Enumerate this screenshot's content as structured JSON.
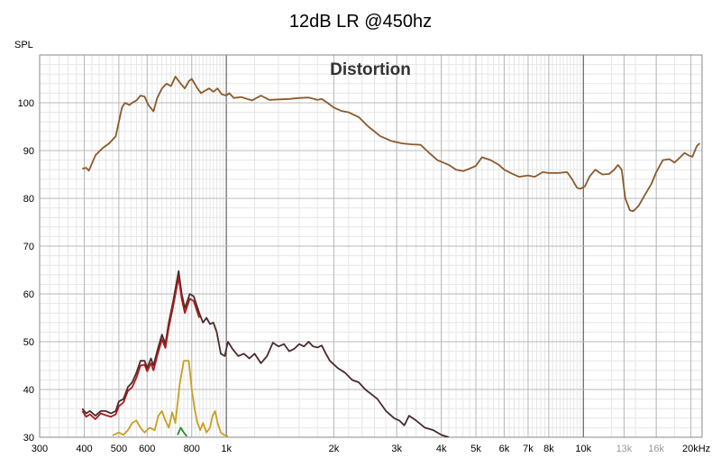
{
  "chart_data": {
    "type": "line",
    "title": "12dB LR @450hz",
    "inner_title": "Distortion",
    "ylabel": "SPL",
    "xlabel": "",
    "x_scale": "log",
    "xlim": [
      300,
      21500
    ],
    "ylim": [
      30,
      110
    ],
    "grid": true,
    "legend": "none",
    "x_ticks": [
      {
        "value": 300,
        "label": "300",
        "grey": false
      },
      {
        "value": 400,
        "label": "400",
        "grey": false
      },
      {
        "value": 500,
        "label": "500",
        "grey": false
      },
      {
        "value": 600,
        "label": "600",
        "grey": false
      },
      {
        "value": 800,
        "label": "800",
        "grey": false
      },
      {
        "value": 1000,
        "label": "1k",
        "grey": false
      },
      {
        "value": 2000,
        "label": "2k",
        "grey": false
      },
      {
        "value": 3000,
        "label": "3k",
        "grey": false
      },
      {
        "value": 4000,
        "label": "4k",
        "grey": false
      },
      {
        "value": 5000,
        "label": "5k",
        "grey": false
      },
      {
        "value": 6000,
        "label": "6k",
        "grey": false
      },
      {
        "value": 7000,
        "label": "7k",
        "grey": false
      },
      {
        "value": 8000,
        "label": "8k",
        "grey": false
      },
      {
        "value": 10000,
        "label": "10k",
        "grey": false
      },
      {
        "value": 13000,
        "label": "13k",
        "grey": true
      },
      {
        "value": 16000,
        "label": "16k",
        "grey": true
      },
      {
        "value": 20000,
        "label": "20kHz",
        "grey": false
      }
    ],
    "y_ticks": [
      {
        "value": 30,
        "label": "30"
      },
      {
        "value": 40,
        "label": "40"
      },
      {
        "value": 50,
        "label": "50"
      },
      {
        "value": 60,
        "label": "60"
      },
      {
        "value": 70,
        "label": "70"
      },
      {
        "value": 80,
        "label": "80"
      },
      {
        "value": 90,
        "label": "90"
      },
      {
        "value": 100,
        "label": "100"
      }
    ],
    "series": [
      {
        "color": "#8b5a2b",
        "points": [
          [
            395,
            86.2
          ],
          [
            405,
            86.4
          ],
          [
            412,
            85.8
          ],
          [
            430,
            89
          ],
          [
            450,
            90.5
          ],
          [
            470,
            91.5
          ],
          [
            490,
            93
          ],
          [
            500,
            96
          ],
          [
            510,
            99
          ],
          [
            520,
            100
          ],
          [
            535,
            99.5
          ],
          [
            545,
            100
          ],
          [
            560,
            100.5
          ],
          [
            575,
            101.5
          ],
          [
            590,
            101.3
          ],
          [
            605,
            99.5
          ],
          [
            625,
            98.2
          ],
          [
            640,
            101
          ],
          [
            660,
            103
          ],
          [
            680,
            104
          ],
          [
            700,
            103.5
          ],
          [
            720,
            105.5
          ],
          [
            745,
            104
          ],
          [
            765,
            103
          ],
          [
            785,
            104.5
          ],
          [
            800,
            105
          ],
          [
            830,
            103
          ],
          [
            850,
            102
          ],
          [
            870,
            102.5
          ],
          [
            895,
            103
          ],
          [
            920,
            102.3
          ],
          [
            945,
            103
          ],
          [
            970,
            101.8
          ],
          [
            1000,
            101.5
          ],
          [
            1020,
            102
          ],
          [
            1050,
            101
          ],
          [
            1100,
            101.2
          ],
          [
            1180,
            100.5
          ],
          [
            1250,
            101.5
          ],
          [
            1320,
            100.6
          ],
          [
            1400,
            100.7
          ],
          [
            1500,
            100.8
          ],
          [
            1600,
            101
          ],
          [
            1700,
            101.1
          ],
          [
            1800,
            100.6
          ],
          [
            1850,
            100.8
          ],
          [
            1900,
            100.2
          ],
          [
            2000,
            99
          ],
          [
            2100,
            98.3
          ],
          [
            2200,
            98
          ],
          [
            2350,
            97
          ],
          [
            2500,
            95
          ],
          [
            2700,
            93
          ],
          [
            2900,
            92
          ],
          [
            3100,
            91.5
          ],
          [
            3300,
            91.3
          ],
          [
            3500,
            91.2
          ],
          [
            3700,
            89.5
          ],
          [
            3900,
            88
          ],
          [
            4200,
            87
          ],
          [
            4400,
            86
          ],
          [
            4600,
            85.7
          ],
          [
            4800,
            86.2
          ],
          [
            5000,
            86.8
          ],
          [
            5200,
            88.6
          ],
          [
            5500,
            88
          ],
          [
            5800,
            87
          ],
          [
            6000,
            86
          ],
          [
            6300,
            85.2
          ],
          [
            6600,
            84.5
          ],
          [
            7000,
            84.8
          ],
          [
            7300,
            84.5
          ],
          [
            7700,
            85.5
          ],
          [
            8000,
            85.3
          ],
          [
            8500,
            85.3
          ],
          [
            9000,
            85.5
          ],
          [
            9300,
            84
          ],
          [
            9600,
            82.2
          ],
          [
            9800,
            82
          ],
          [
            10100,
            82.5
          ],
          [
            10400,
            84.5
          ],
          [
            10800,
            86
          ],
          [
            11300,
            85
          ],
          [
            11800,
            85.1
          ],
          [
            12200,
            86
          ],
          [
            12500,
            87
          ],
          [
            12800,
            86
          ],
          [
            13100,
            80
          ],
          [
            13500,
            77.5
          ],
          [
            13800,
            77.3
          ],
          [
            14300,
            78.5
          ],
          [
            14800,
            80.5
          ],
          [
            15500,
            83
          ],
          [
            16000,
            85.5
          ],
          [
            16700,
            88
          ],
          [
            17400,
            88.2
          ],
          [
            18000,
            87.5
          ],
          [
            18600,
            88.5
          ],
          [
            19200,
            89.5
          ],
          [
            19700,
            89
          ],
          [
            20200,
            88.7
          ],
          [
            20800,
            91
          ],
          [
            21200,
            91.5
          ]
        ]
      },
      {
        "color": "#4a2c2c",
        "points": [
          [
            395,
            36
          ],
          [
            405,
            35
          ],
          [
            415,
            35.5
          ],
          [
            430,
            34.5
          ],
          [
            445,
            35.5
          ],
          [
            460,
            35.5
          ],
          [
            475,
            35
          ],
          [
            490,
            35.5
          ],
          [
            500,
            37.5
          ],
          [
            515,
            38
          ],
          [
            530,
            40.5
          ],
          [
            545,
            41.5
          ],
          [
            560,
            43.5
          ],
          [
            575,
            46
          ],
          [
            590,
            46
          ],
          [
            600,
            44.5
          ],
          [
            615,
            46.5
          ],
          [
            625,
            45
          ],
          [
            640,
            48
          ],
          [
            660,
            51.5
          ],
          [
            675,
            49.5
          ],
          [
            690,
            54
          ],
          [
            710,
            58.5
          ],
          [
            735,
            64.8
          ],
          [
            750,
            60
          ],
          [
            765,
            57
          ],
          [
            790,
            60
          ],
          [
            810,
            59.5
          ],
          [
            840,
            56
          ],
          [
            860,
            54
          ],
          [
            880,
            55
          ],
          [
            900,
            53.7
          ],
          [
            920,
            54
          ],
          [
            940,
            52
          ],
          [
            965,
            47.5
          ],
          [
            990,
            47
          ],
          [
            1010,
            50
          ],
          [
            1040,
            48.5
          ],
          [
            1080,
            47
          ],
          [
            1120,
            47.5
          ],
          [
            1160,
            46.5
          ],
          [
            1200,
            47.5
          ],
          [
            1250,
            45.5
          ],
          [
            1300,
            47
          ],
          [
            1350,
            49.8
          ],
          [
            1400,
            49
          ],
          [
            1450,
            49.5
          ],
          [
            1500,
            48
          ],
          [
            1550,
            48.5
          ],
          [
            1600,
            49.5
          ],
          [
            1650,
            49
          ],
          [
            1700,
            50
          ],
          [
            1750,
            49
          ],
          [
            1800,
            48.8
          ],
          [
            1850,
            49.2
          ],
          [
            1900,
            47.5
          ],
          [
            1950,
            46
          ],
          [
            2050,
            44.5
          ],
          [
            2150,
            43.5
          ],
          [
            2250,
            42
          ],
          [
            2350,
            41.5
          ],
          [
            2450,
            40
          ],
          [
            2550,
            39
          ],
          [
            2650,
            38
          ],
          [
            2800,
            35.5
          ],
          [
            2950,
            34
          ],
          [
            3050,
            33.5
          ],
          [
            3150,
            32.5
          ],
          [
            3250,
            34.5
          ],
          [
            3400,
            33.5
          ],
          [
            3600,
            32
          ],
          [
            3800,
            31.5
          ],
          [
            4000,
            30.5
          ],
          [
            4200,
            30
          ]
        ]
      },
      {
        "color": "#b01818",
        "points": [
          [
            395,
            35.5
          ],
          [
            405,
            34.3
          ],
          [
            415,
            34.8
          ],
          [
            430,
            33.8
          ],
          [
            445,
            35
          ],
          [
            460,
            34.6
          ],
          [
            475,
            34.3
          ],
          [
            490,
            34.8
          ],
          [
            500,
            36.5
          ],
          [
            515,
            37.3
          ],
          [
            530,
            39.7
          ],
          [
            545,
            40.5
          ],
          [
            560,
            42.5
          ],
          [
            575,
            45
          ],
          [
            590,
            45.2
          ],
          [
            600,
            43.8
          ],
          [
            615,
            45.5
          ],
          [
            625,
            44
          ],
          [
            640,
            47
          ],
          [
            660,
            50.5
          ],
          [
            675,
            48.7
          ],
          [
            690,
            53
          ],
          [
            710,
            57.5
          ],
          [
            735,
            63.5
          ],
          [
            750,
            59
          ],
          [
            765,
            56
          ],
          [
            790,
            59
          ],
          [
            810,
            58.5
          ],
          [
            840,
            55
          ]
        ]
      },
      {
        "color": "#c8a020",
        "points": [
          [
            480,
            30.4
          ],
          [
            500,
            31
          ],
          [
            515,
            30.5
          ],
          [
            530,
            31.5
          ],
          [
            545,
            33
          ],
          [
            560,
            33.5
          ],
          [
            575,
            32
          ],
          [
            590,
            31
          ],
          [
            610,
            32
          ],
          [
            630,
            31.5
          ],
          [
            645,
            34.5
          ],
          [
            660,
            35.5
          ],
          [
            675,
            33.5
          ],
          [
            690,
            32
          ],
          [
            705,
            35.2
          ],
          [
            720,
            33
          ],
          [
            740,
            41
          ],
          [
            760,
            46
          ],
          [
            785,
            46
          ],
          [
            800,
            40
          ],
          [
            815,
            36
          ],
          [
            830,
            33
          ],
          [
            845,
            31.5
          ],
          [
            860,
            33
          ],
          [
            880,
            31
          ],
          [
            900,
            32
          ],
          [
            915,
            34.5
          ],
          [
            930,
            35.5
          ],
          [
            945,
            33
          ],
          [
            965,
            31
          ],
          [
            985,
            30.5
          ],
          [
            1010,
            30.2
          ]
        ]
      },
      {
        "color": "#2a8a2a",
        "points": [
          [
            730,
            30.5
          ],
          [
            745,
            32
          ],
          [
            760,
            31
          ],
          [
            775,
            30.2
          ]
        ]
      }
    ]
  }
}
